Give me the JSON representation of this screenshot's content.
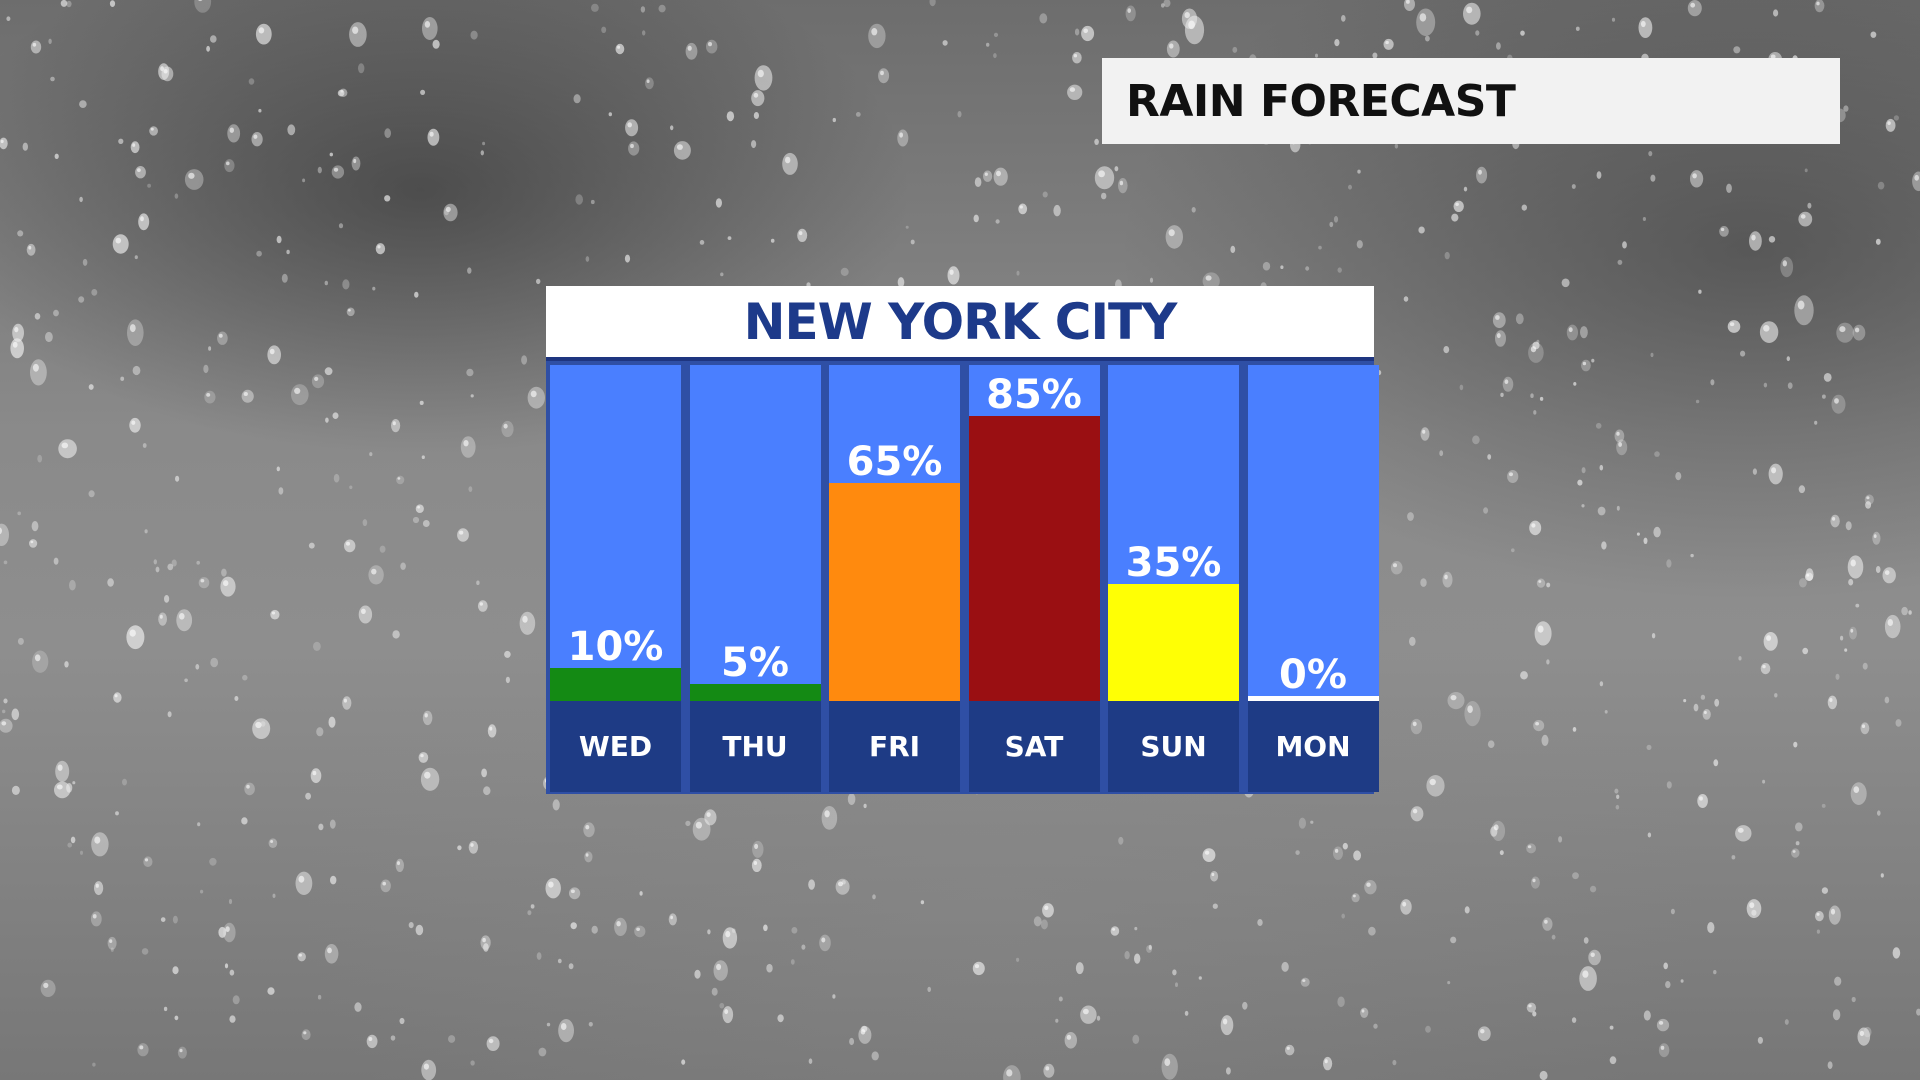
{
  "banner": {
    "title": "RAIN FORECAST"
  },
  "panel": {
    "city": "NEW YORK CITY"
  },
  "chart_data": {
    "type": "bar",
    "title": "NEW YORK CITY",
    "categories": [
      "WED",
      "THU",
      "FRI",
      "SAT",
      "SUN",
      "MON"
    ],
    "values": [
      10,
      5,
      65,
      85,
      35,
      0
    ],
    "labels": [
      "10%",
      "5%",
      "65%",
      "85%",
      "35%",
      "0%"
    ],
    "unit": "%",
    "ylim": [
      0,
      100
    ],
    "colors": [
      "#148a14",
      "#148a14",
      "#ff8a0e",
      "#9a0f12",
      "#ffff05",
      "#ffffff"
    ],
    "background_color": "#4a7fff",
    "grid": false
  }
}
